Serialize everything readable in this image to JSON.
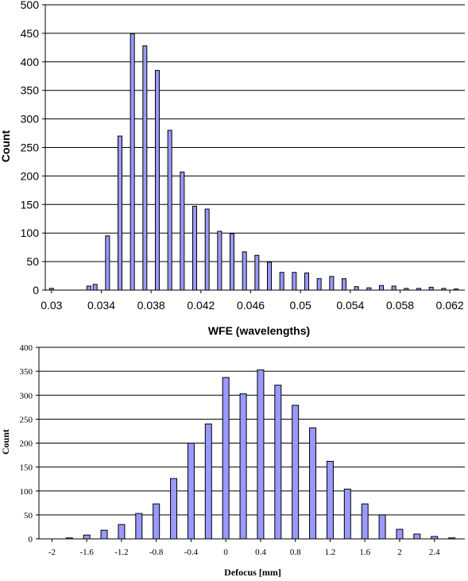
{
  "chart_data": [
    {
      "type": "bar",
      "xlabel": "WFE (wavelengths)",
      "ylabel": "Count",
      "ylim": [
        0,
        500
      ],
      "yticks": [
        0,
        50,
        100,
        150,
        200,
        250,
        300,
        350,
        400,
        450,
        500
      ],
      "xticks": [
        "0.03",
        "0.034",
        "0.038",
        "0.042",
        "0.046",
        "0.05",
        "0.054",
        "0.058",
        "0.062"
      ],
      "grid": true,
      "bar_color": "#9999ff",
      "x": [
        0.03,
        0.031,
        0.032,
        0.033,
        0.0335,
        0.0345,
        0.0355,
        0.0365,
        0.0375,
        0.0385,
        0.0395,
        0.0405,
        0.0415,
        0.0425,
        0.0435,
        0.0445,
        0.0455,
        0.0465,
        0.0475,
        0.0485,
        0.0495,
        0.0505,
        0.0515,
        0.0525,
        0.0535,
        0.0545,
        0.0555,
        0.0565,
        0.0575,
        0.0585,
        0.0595,
        0.0605,
        0.0615,
        0.0625
      ],
      "values": [
        3,
        0,
        0,
        7,
        10,
        95,
        270,
        449,
        428,
        385,
        280,
        207,
        147,
        142,
        103,
        99,
        67,
        61,
        49,
        31,
        31,
        30,
        20,
        24,
        20,
        6,
        4,
        8,
        7,
        3,
        3,
        5,
        3,
        2
      ]
    },
    {
      "type": "bar",
      "xlabel": "Defocus [mm]",
      "ylabel": "Count",
      "ylim": [
        0,
        400
      ],
      "yticks": [
        0,
        50,
        100,
        150,
        200,
        250,
        300,
        350,
        400
      ],
      "xticks": [
        "-2",
        "-1.6",
        "-1.2",
        "-0.8",
        "-0.4",
        "0",
        "0.4",
        "0.8",
        "1.2",
        "1.6",
        "2",
        "2.4"
      ],
      "grid": true,
      "bar_color": "#9999ff",
      "x": [
        -1.8,
        -1.6,
        -1.4,
        -1.2,
        -1.0,
        -0.8,
        -0.6,
        -0.4,
        -0.2,
        0.0,
        0.2,
        0.4,
        0.6,
        0.8,
        1.0,
        1.2,
        1.4,
        1.6,
        1.8,
        2.0,
        2.2,
        2.4,
        2.6
      ],
      "values": [
        2,
        8,
        18,
        30,
        53,
        73,
        126,
        200,
        240,
        337,
        303,
        353,
        321,
        279,
        232,
        162,
        104,
        73,
        50,
        20,
        10,
        5,
        2
      ]
    }
  ]
}
